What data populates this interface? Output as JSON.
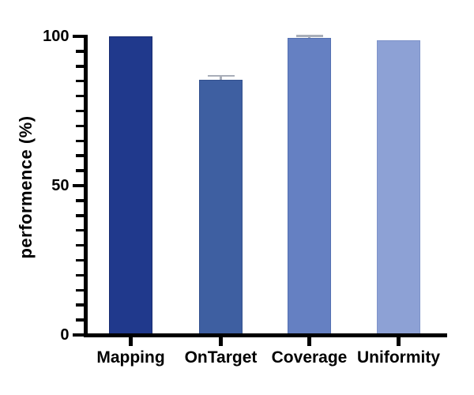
{
  "chart_data": {
    "type": "bar",
    "title": "",
    "ylabel": "performence (%)",
    "xlabel": "",
    "categories": [
      "Mapping",
      "OnTarget",
      "Coverage",
      "Uniformity"
    ],
    "values": [
      100,
      85.5,
      99.5,
      98.8
    ],
    "errors": [
      0,
      1.3,
      0.6,
      0
    ],
    "bar_colors": [
      "#20398c",
      "#3e5fa1",
      "#6580c2",
      "#8da1d5"
    ],
    "bar_border_colors": [
      "#182c70",
      "#33518e",
      "#5470b2",
      "#7e93c9"
    ],
    "error_bar_color": "#a9aeb9",
    "axis_color": "#000000",
    "ylim": [
      0,
      100
    ],
    "yticks_major": [
      0,
      50,
      100
    ],
    "ytick_labels": [
      "0",
      "50",
      "100"
    ],
    "ytick_minor_step": 5,
    "grid": "off",
    "legend": "none"
  }
}
